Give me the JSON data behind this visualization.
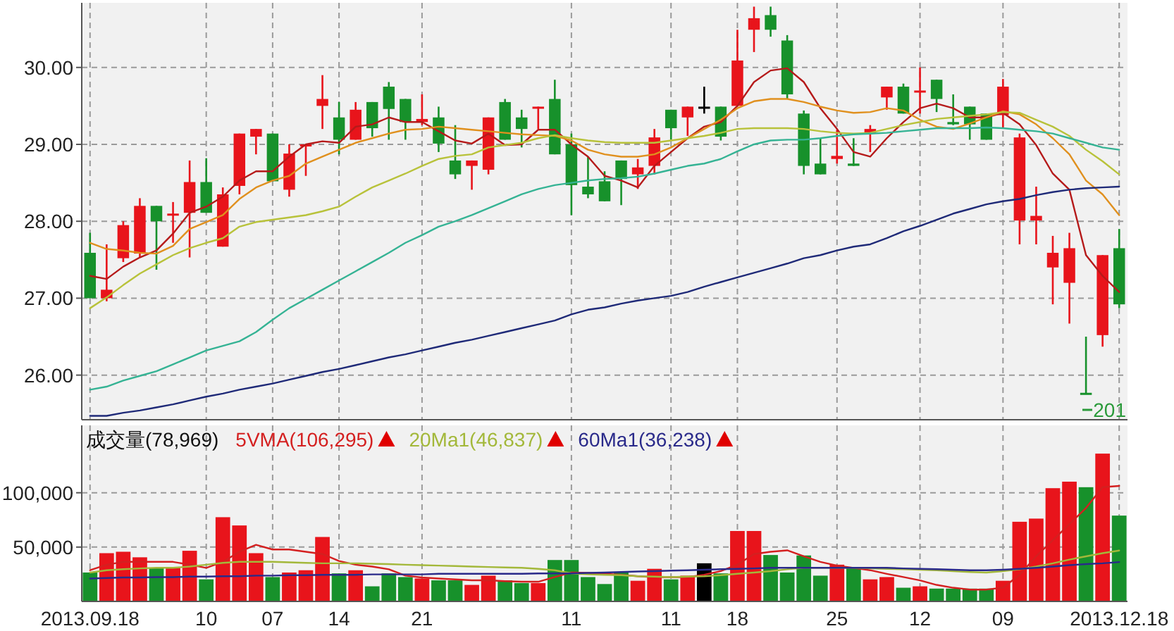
{
  "chart_data": [
    {
      "type": "candlestick",
      "tick_labels": "y",
      "grid": true,
      "ylim": [
        25.42,
        30.84
      ],
      "yticks": [
        {
          "value": 26,
          "label": "26.00"
        },
        {
          "value": 27,
          "label": "27.00"
        },
        {
          "value": 28,
          "label": "28.00"
        },
        {
          "value": 29,
          "label": "29.00"
        },
        {
          "value": 30,
          "label": "30.00"
        }
      ],
      "categories": [
        "2013.09.18",
        null,
        null,
        null,
        null,
        null,
        null,
        "10",
        null,
        null,
        null,
        "07",
        null,
        null,
        null,
        "14",
        null,
        null,
        null,
        null,
        "21",
        null,
        null,
        null,
        null,
        null,
        null,
        null,
        null,
        "11",
        null,
        null,
        null,
        null,
        null,
        "11",
        null,
        null,
        null,
        "18",
        null,
        null,
        null,
        null,
        null,
        "25",
        null,
        null,
        null,
        null,
        "12",
        null,
        null,
        null,
        null,
        "09",
        null,
        null,
        null,
        null,
        null,
        null,
        "2013.12.18"
      ],
      "ohlc": [
        [
          27.59,
          27.85,
          27.0,
          27.0
        ],
        [
          27.0,
          27.7,
          26.96,
          27.11
        ],
        [
          27.52,
          28.0,
          27.47,
          27.95
        ],
        [
          27.58,
          28.3,
          27.53,
          28.2
        ],
        [
          28.2,
          28.2,
          27.37,
          28.0
        ],
        [
          28.09,
          28.25,
          27.72,
          28.1
        ],
        [
          28.11,
          28.79,
          27.53,
          28.51
        ],
        [
          28.51,
          28.82,
          28.11,
          28.11
        ],
        [
          27.67,
          28.44,
          27.67,
          28.35
        ],
        [
          28.46,
          29.14,
          28.35,
          29.14
        ],
        [
          29.1,
          29.2,
          28.87,
          29.2
        ],
        [
          29.14,
          29.14,
          28.52,
          28.52
        ],
        [
          28.41,
          29.0,
          28.32,
          28.88
        ],
        [
          28.99,
          29.0,
          28.59,
          29.0
        ],
        [
          29.5,
          29.9,
          29.2,
          29.59
        ],
        [
          29.35,
          29.55,
          28.87,
          29.06
        ],
        [
          29.06,
          29.55,
          29.06,
          29.45
        ],
        [
          29.55,
          29.55,
          29.1,
          29.21
        ],
        [
          29.75,
          29.81,
          29.06,
          29.46
        ],
        [
          29.59,
          29.59,
          29.06,
          29.29
        ],
        [
          29.29,
          29.65,
          29.25,
          29.33
        ],
        [
          29.35,
          29.49,
          28.9,
          29.01
        ],
        [
          28.79,
          29.25,
          28.55,
          28.61
        ],
        [
          28.72,
          28.79,
          28.41,
          28.79
        ],
        [
          28.67,
          29.35,
          28.61,
          29.35
        ],
        [
          29.55,
          29.59,
          29.06,
          29.06
        ],
        [
          29.35,
          29.45,
          28.96,
          29.2
        ],
        [
          29.48,
          29.49,
          29.2,
          29.49
        ],
        [
          29.59,
          29.84,
          28.87,
          28.87
        ],
        [
          29.0,
          29.14,
          28.08,
          28.47
        ],
        [
          28.45,
          28.84,
          28.3,
          28.35
        ],
        [
          28.52,
          28.65,
          28.26,
          28.26
        ],
        [
          28.79,
          28.79,
          28.21,
          28.55
        ],
        [
          28.61,
          28.81,
          28.42,
          28.7
        ],
        [
          28.72,
          29.2,
          28.61,
          29.09
        ],
        [
          29.45,
          29.45,
          29.06,
          29.21
        ],
        [
          29.35,
          29.49,
          29.11,
          29.49
        ],
        [
          29.49,
          29.75,
          29.4,
          29.49
        ],
        [
          29.49,
          29.49,
          29.05,
          29.1
        ],
        [
          29.5,
          30.49,
          29.5,
          30.09
        ],
        [
          30.49,
          30.79,
          30.2,
          30.64
        ],
        [
          30.68,
          30.79,
          30.4,
          30.49
        ],
        [
          30.35,
          30.42,
          29.59,
          29.65
        ],
        [
          29.4,
          29.44,
          28.61,
          28.72
        ],
        [
          28.75,
          29.08,
          28.61,
          28.61
        ],
        [
          28.81,
          29.19,
          28.75,
          28.85
        ],
        [
          28.75,
          29.08,
          28.72,
          28.72
        ],
        [
          29.14,
          29.25,
          28.9,
          29.2
        ],
        [
          29.61,
          29.75,
          29.45,
          29.75
        ],
        [
          29.75,
          29.79,
          29.4,
          29.4
        ],
        [
          29.69,
          30.0,
          29.4,
          29.7
        ],
        [
          29.84,
          29.84,
          29.42,
          29.59
        ],
        [
          29.29,
          29.65,
          29.25,
          29.26
        ],
        [
          29.49,
          29.49,
          29.06,
          29.26
        ],
        [
          29.4,
          29.4,
          29.06,
          29.06
        ],
        [
          29.38,
          29.85,
          29.21,
          29.75
        ],
        [
          28.01,
          29.14,
          27.7,
          29.09
        ],
        [
          28.01,
          28.45,
          27.7,
          28.07
        ],
        [
          27.4,
          27.81,
          26.92,
          27.59
        ],
        [
          27.2,
          27.85,
          26.67,
          27.65
        ],
        [
          25.77,
          26.5,
          25.75,
          25.75
        ],
        [
          26.52,
          27.56,
          26.37,
          27.56
        ],
        [
          27.65,
          27.9,
          26.87,
          26.92
        ]
      ],
      "colors": [
        "#17912b",
        "#e8141b",
        "#e8141b",
        "#e8141b",
        "#17912b",
        "#e8141b",
        "#e8141b",
        "#17912b",
        "#e8141b",
        "#e8141b",
        "#e8141b",
        "#17912b",
        "#e8141b",
        "#e8141b",
        "#e8141b",
        "#17912b",
        "#e8141b",
        "#17912b",
        "#17912b",
        "#17912b",
        "#e8141b",
        "#17912b",
        "#17912b",
        "#e8141b",
        "#e8141b",
        "#17912b",
        "#17912b",
        "#e8141b",
        "#17912b",
        "#17912b",
        "#17912b",
        "#17912b",
        "#17912b",
        "#e8141b",
        "#e8141b",
        "#17912b",
        "#e8141b",
        "#000000",
        "#17912b",
        "#e8141b",
        "#e8141b",
        "#17912b",
        "#17912b",
        "#17912b",
        "#17912b",
        "#e8141b",
        "#17912b",
        "#e8141b",
        "#e8141b",
        "#17912b",
        "#e8141b",
        "#17912b",
        "#17912b",
        "#17912b",
        "#17912b",
        "#e8141b",
        "#e8141b",
        "#e8141b",
        "#e8141b",
        "#e8141b",
        "#17912b",
        "#e8141b",
        "#17912b"
      ],
      "series": [
        {
          "type": "line",
          "color": "#b51a1a",
          "values": [
            27.29,
            27.25,
            27.41,
            27.53,
            27.62,
            27.84,
            28.11,
            28.19,
            28.32,
            28.53,
            28.65,
            28.65,
            28.84,
            29.0,
            29.04,
            29.02,
            29.23,
            29.26,
            29.35,
            29.29,
            29.29,
            29.17,
            29.05,
            29.01,
            29.14,
            28.99,
            29.0,
            29.19,
            29.19,
            29.0,
            28.84,
            28.59,
            28.53,
            28.44,
            28.72,
            28.9,
            29.08,
            29.23,
            29.29,
            29.5,
            29.81,
            29.96,
            29.99,
            29.81,
            29.47,
            29.2,
            28.9,
            28.84,
            29.08,
            29.29,
            29.47,
            29.53,
            29.47,
            29.35,
            29.35,
            29.41,
            29.26,
            28.99,
            28.62,
            28.41,
            27.56,
            27.29,
            27.08
          ]
        },
        {
          "type": "line",
          "color": "#e0901e",
          "values": [
            27.72,
            27.64,
            27.62,
            27.59,
            27.58,
            27.68,
            27.9,
            27.99,
            28.08,
            28.29,
            28.44,
            28.53,
            28.59,
            28.75,
            28.84,
            28.93,
            29.02,
            29.08,
            29.14,
            29.19,
            29.2,
            29.23,
            29.21,
            29.19,
            29.17,
            29.15,
            29.13,
            29.12,
            29.11,
            29.05,
            28.93,
            28.87,
            28.84,
            28.84,
            28.87,
            28.96,
            29.08,
            29.2,
            29.32,
            29.47,
            29.56,
            29.59,
            29.59,
            29.55,
            29.49,
            29.44,
            29.41,
            29.42,
            29.47,
            29.44,
            29.32,
            29.23,
            29.2,
            29.27,
            29.35,
            29.43,
            29.39,
            29.26,
            29.08,
            28.87,
            28.53,
            28.35,
            28.08
          ]
        },
        {
          "type": "line",
          "color": "#b8c23a",
          "values": [
            26.87,
            27.01,
            27.17,
            27.32,
            27.44,
            27.56,
            27.65,
            27.72,
            27.78,
            27.93,
            27.99,
            28.02,
            28.05,
            28.08,
            28.13,
            28.19,
            28.32,
            28.44,
            28.53,
            28.62,
            28.72,
            28.81,
            28.85,
            28.87,
            28.96,
            28.99,
            29.02,
            29.08,
            29.12,
            29.08,
            29.05,
            29.03,
            29.02,
            29.02,
            29.02,
            29.05,
            29.08,
            29.11,
            29.15,
            29.2,
            29.21,
            29.21,
            29.21,
            29.2,
            29.17,
            29.15,
            29.14,
            29.15,
            29.2,
            29.25,
            29.29,
            29.33,
            29.35,
            29.37,
            29.39,
            29.42,
            29.41,
            29.32,
            29.23,
            29.11,
            28.93,
            28.78,
            28.61
          ]
        },
        {
          "type": "line",
          "color": "#35b394",
          "values": [
            25.81,
            25.85,
            25.93,
            25.99,
            26.05,
            26.14,
            26.23,
            26.32,
            26.38,
            26.44,
            26.56,
            26.72,
            26.87,
            26.99,
            27.11,
            27.23,
            27.35,
            27.47,
            27.59,
            27.72,
            27.82,
            27.93,
            28.0,
            28.08,
            28.17,
            28.26,
            28.35,
            28.42,
            28.47,
            28.5,
            28.53,
            28.55,
            28.56,
            28.58,
            28.62,
            28.67,
            28.72,
            28.75,
            28.81,
            28.91,
            29.0,
            29.05,
            29.06,
            29.06,
            29.08,
            29.11,
            29.13,
            29.14,
            29.15,
            29.17,
            29.19,
            29.21,
            29.21,
            29.21,
            29.22,
            29.21,
            29.19,
            29.17,
            29.14,
            29.08,
            29.02,
            28.96,
            28.93
          ]
        },
        {
          "type": "line",
          "color": "#1f2a78",
          "values": [
            25.47,
            25.47,
            25.51,
            25.54,
            25.58,
            25.62,
            25.67,
            25.72,
            25.76,
            25.81,
            25.85,
            25.89,
            25.94,
            25.99,
            26.04,
            26.08,
            26.13,
            26.18,
            26.23,
            26.27,
            26.32,
            26.37,
            26.42,
            26.46,
            26.51,
            26.56,
            26.61,
            26.66,
            26.71,
            26.79,
            26.85,
            26.88,
            26.93,
            26.97,
            27.0,
            27.03,
            27.08,
            27.15,
            27.21,
            27.27,
            27.33,
            27.39,
            27.45,
            27.52,
            27.56,
            27.62,
            27.67,
            27.7,
            27.78,
            27.87,
            27.94,
            28.02,
            28.1,
            28.16,
            28.22,
            28.26,
            28.29,
            28.34,
            28.38,
            28.41,
            28.43,
            28.44,
            28.45
          ]
        }
      ],
      "annotations": [
        "201"
      ]
    },
    {
      "type": "bar",
      "title": "成交量(78,969)",
      "legend": "top left",
      "grid": true,
      "ylim": [
        0,
        162000
      ],
      "yticks": [
        {
          "value": 50000,
          "label": "50,000"
        },
        {
          "value": 100000,
          "label": "100,000"
        }
      ],
      "categories": [
        "2013.09.18",
        null,
        null,
        null,
        null,
        null,
        null,
        "10",
        null,
        null,
        null,
        "07",
        null,
        null,
        null,
        "14",
        null,
        null,
        null,
        null,
        "21",
        null,
        null,
        null,
        null,
        null,
        null,
        null,
        null,
        "11",
        null,
        null,
        null,
        null,
        null,
        "11",
        null,
        null,
        null,
        "18",
        null,
        null,
        null,
        null,
        null,
        "25",
        null,
        null,
        null,
        null,
        "12",
        null,
        null,
        null,
        null,
        "09",
        null,
        null,
        null,
        null,
        null,
        null,
        "2013.12.18"
      ],
      "values": [
        26600,
        44400,
        45700,
        40600,
        30900,
        30900,
        46600,
        20300,
        77500,
        69900,
        44400,
        22400,
        26600,
        28700,
        59300,
        25800,
        28700,
        13900,
        25800,
        22400,
        21100,
        19400,
        19400,
        15200,
        23700,
        19400,
        16900,
        16900,
        38100,
        38100,
        22400,
        16000,
        26600,
        19000,
        30000,
        20300,
        23700,
        35100,
        25800,
        64800,
        64800,
        42700,
        26600,
        42300,
        23700,
        33800,
        30900,
        20300,
        22400,
        12600,
        13900,
        11800,
        11800,
        11800,
        11800,
        19000,
        73300,
        76200,
        104200,
        110200,
        105100,
        136000,
        78969
      ],
      "colors": [
        "#17912b",
        "#e8141b",
        "#e8141b",
        "#e8141b",
        "#17912b",
        "#e8141b",
        "#e8141b",
        "#17912b",
        "#e8141b",
        "#e8141b",
        "#e8141b",
        "#17912b",
        "#e8141b",
        "#e8141b",
        "#e8141b",
        "#17912b",
        "#e8141b",
        "#17912b",
        "#17912b",
        "#17912b",
        "#e8141b",
        "#17912b",
        "#17912b",
        "#e8141b",
        "#e8141b",
        "#17912b",
        "#17912b",
        "#e8141b",
        "#17912b",
        "#17912b",
        "#17912b",
        "#17912b",
        "#17912b",
        "#e8141b",
        "#e8141b",
        "#17912b",
        "#e8141b",
        "#000000",
        "#17912b",
        "#e8141b",
        "#e8141b",
        "#17912b",
        "#17912b",
        "#17912b",
        "#17912b",
        "#e8141b",
        "#17912b",
        "#e8141b",
        "#e8141b",
        "#17912b",
        "#e8141b",
        "#17912b",
        "#17912b",
        "#17912b",
        "#17912b",
        "#e8141b",
        "#e8141b",
        "#e8141b",
        "#e8141b",
        "#e8141b",
        "#17912b",
        "#e8141b",
        "#17912b"
      ],
      "series": [
        {
          "type": "line",
          "name": "5VMA(106,295)",
          "color": "#d42020",
          "values": [
            28700,
            33800,
            36400,
            36400,
            36400,
            36400,
            33800,
            30900,
            36400,
            45700,
            52100,
            47800,
            47800,
            45700,
            43600,
            37200,
            33800,
            32100,
            29600,
            23700,
            22000,
            21100,
            20300,
            19400,
            19400,
            18600,
            18100,
            18100,
            22400,
            26600,
            26200,
            25400,
            24500,
            23200,
            22400,
            22400,
            22400,
            24500,
            27900,
            33800,
            43600,
            45700,
            47000,
            41500,
            36400,
            33000,
            30900,
            28700,
            25400,
            22400,
            19400,
            15200,
            12600,
            10900,
            10900,
            12600,
            24500,
            41500,
            56300,
            71100,
            86000,
            105100,
            106295
          ]
        },
        {
          "type": "line",
          "name": "20Ma1(46,837)",
          "color": "#a3b83a",
          "values": [
            26600,
            28700,
            29600,
            30400,
            30900,
            30900,
            32100,
            33800,
            35500,
            36400,
            36400,
            36400,
            36000,
            35500,
            35100,
            35100,
            35100,
            34700,
            34300,
            33800,
            33400,
            33000,
            32600,
            32100,
            31700,
            31300,
            30900,
            30000,
            28700,
            25800,
            24900,
            24500,
            24100,
            23200,
            22800,
            22400,
            22800,
            23200,
            24100,
            25400,
            26600,
            27900,
            29600,
            30900,
            30900,
            30900,
            30900,
            30400,
            30000,
            29600,
            29200,
            28700,
            27900,
            27100,
            26600,
            27900,
            29600,
            32100,
            35100,
            38500,
            41500,
            44400,
            46837
          ]
        },
        {
          "type": "line",
          "name": "60Ma1(36,238)",
          "color": "#2a2a8a",
          "values": [
            21100,
            21500,
            22000,
            22000,
            22400,
            22400,
            22800,
            22800,
            23200,
            23200,
            23700,
            23700,
            24100,
            24100,
            24500,
            24500,
            24500,
            24900,
            24900,
            24900,
            24900,
            25400,
            25400,
            25400,
            25400,
            25400,
            25400,
            25800,
            25800,
            25800,
            26200,
            26600,
            27100,
            27500,
            27900,
            28300,
            28700,
            29200,
            29600,
            30000,
            30400,
            30900,
            30900,
            30900,
            30900,
            30900,
            30900,
            30900,
            30900,
            30400,
            30000,
            29600,
            29200,
            28700,
            28700,
            29200,
            30000,
            30900,
            32100,
            33400,
            34300,
            35100,
            36238
          ]
        }
      ]
    }
  ]
}
